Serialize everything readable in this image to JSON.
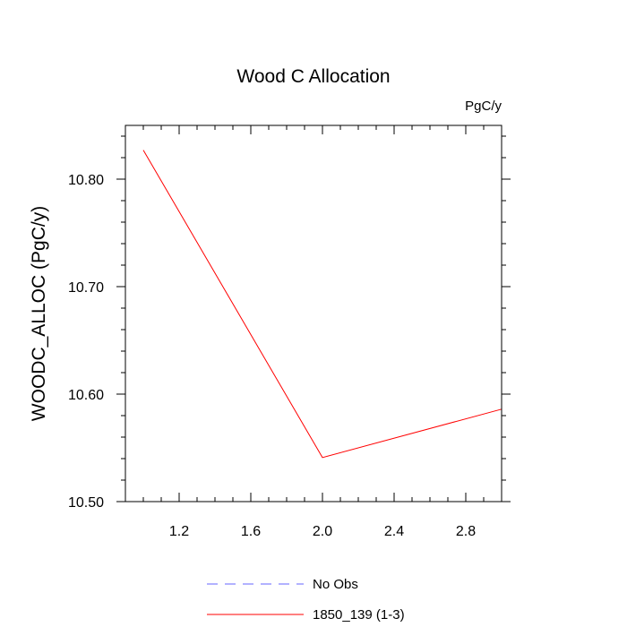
{
  "chart_data": {
    "type": "line",
    "title": "Wood C Allocation",
    "units_label": "PgC/y",
    "xlabel": "",
    "ylabel": "WOODC_ALLOC  (PgC/y)",
    "xlim": [
      0.9,
      3.0
    ],
    "ylim": [
      10.5,
      10.85
    ],
    "x_ticks": [
      1.2,
      1.6,
      2.0,
      2.4,
      2.8
    ],
    "x_tick_labels": [
      "1.2",
      "1.6",
      "2.0",
      "2.4",
      "2.8"
    ],
    "y_ticks": [
      10.5,
      10.6,
      10.7,
      10.8
    ],
    "y_tick_labels": [
      "10.50",
      "10.60",
      "10.70",
      "10.80"
    ],
    "grid": false,
    "legend_position": "bottom",
    "series": [
      {
        "name": "1850_139 (1-3)",
        "color": "#ff0000",
        "style": "solid",
        "x": [
          1.0,
          2.0,
          3.0
        ],
        "y": [
          10.827,
          10.541,
          10.586
        ]
      }
    ],
    "legend": [
      {
        "label": "No Obs",
        "color": "#6666ff",
        "style": "dashed"
      },
      {
        "label": "1850_139 (1-3)",
        "color": "#ff0000",
        "style": "solid"
      }
    ]
  }
}
